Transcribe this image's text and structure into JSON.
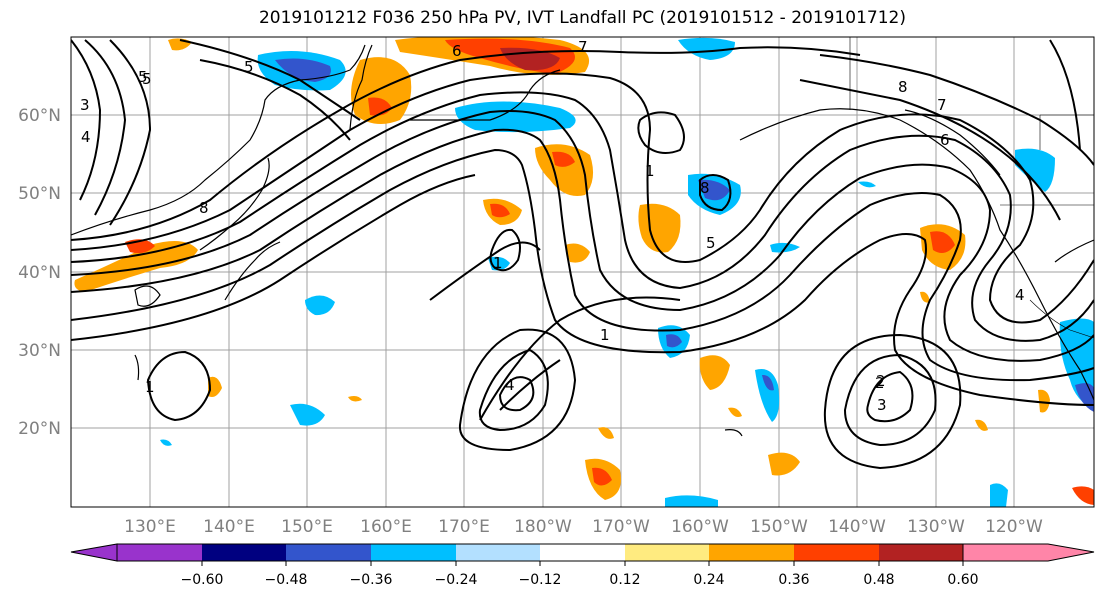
{
  "title": "2019101212 F036 250 hPa PV, IVT Landfall PC (2019101512 - 2019101712)",
  "map": {
    "lon_labels": [
      "130°E",
      "140°E",
      "150°E",
      "160°E",
      "170°E",
      "180°W",
      "170°W",
      "160°W",
      "150°W",
      "140°W",
      "130°W",
      "120°W"
    ],
    "lat_labels": [
      "60°N",
      "50°N",
      "40°N",
      "30°N",
      "20°N"
    ],
    "contour_labels": [
      "5",
      "6",
      "7",
      "8",
      "5",
      "4",
      "3",
      "2",
      "1",
      "4",
      "5",
      "7",
      "8",
      "6",
      "4",
      "1",
      "2",
      "3",
      "5",
      "1",
      "8",
      "1"
    ]
  },
  "colorbar": {
    "ticks": [
      "−0.60",
      "−0.48",
      "−0.36",
      "−0.24",
      "−0.12",
      "0.12",
      "0.24",
      "0.36",
      "0.48",
      "0.60"
    ],
    "colors": {
      "below": "#9933cc",
      "bins": [
        "#000080",
        "#3355cc",
        "#00bfff",
        "#b3e0ff",
        "#ffffff",
        "#ffeb80",
        "#ffa500",
        "#ff4000",
        "#b22222"
      ],
      "above": "#ff85a8"
    }
  }
}
